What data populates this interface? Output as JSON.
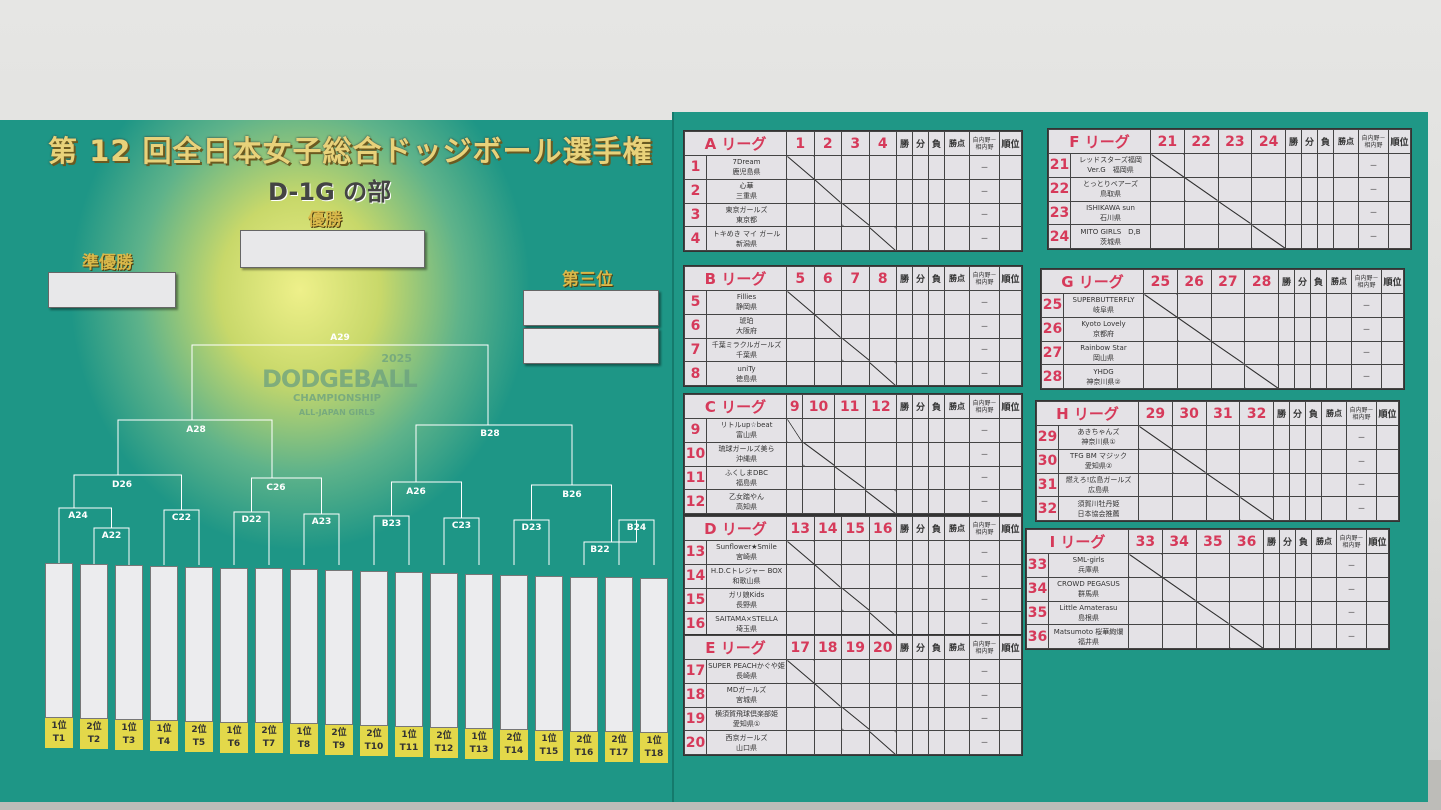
{
  "title": "第 12 回全日本女子総合ドッジボール選手権",
  "division": "D-1G の部",
  "winner_label": "優勝",
  "runner_up_label": "準優勝",
  "third_label": "第三位",
  "logo": {
    "line1": "DODGEBALL",
    "line2": "CHAMPIONSHIP",
    "line3": "ALL-JAPAN GIRLS",
    "year": "2025"
  },
  "bracket_labels": {
    "final": "A29",
    "semi_left": "A28",
    "semi_right": "B28",
    "q1": "D26",
    "q2": "C26",
    "q3": "A26",
    "q4": "B26",
    "r1": "A24",
    "r2": "A22",
    "r3": "C22",
    "r4": "D22",
    "r5": "A23",
    "r6": "B23",
    "r7": "C23",
    "r8": "D23",
    "r9": "B22",
    "r10": "B24"
  },
  "slots": [
    {
      "rank": "1位",
      "team": "T1"
    },
    {
      "rank": "2位",
      "team": "T2"
    },
    {
      "rank": "1位",
      "team": "T3"
    },
    {
      "rank": "1位",
      "team": "T4"
    },
    {
      "rank": "2位",
      "team": "T5"
    },
    {
      "rank": "1位",
      "team": "T6"
    },
    {
      "rank": "2位",
      "team": "T7"
    },
    {
      "rank": "1位",
      "team": "T8"
    },
    {
      "rank": "2位",
      "team": "T9"
    },
    {
      "rank": "2位",
      "team": "T10"
    },
    {
      "rank": "1位",
      "team": "T11"
    },
    {
      "rank": "2位",
      "team": "T12"
    },
    {
      "rank": "1位",
      "team": "T13"
    },
    {
      "rank": "2位",
      "team": "T14"
    },
    {
      "rank": "1位",
      "team": "T15"
    },
    {
      "rank": "2位",
      "team": "T16"
    },
    {
      "rank": "2位",
      "team": "T17"
    },
    {
      "rank": "1位",
      "team": "T18"
    }
  ],
  "table_headers": {
    "win": "勝",
    "draw": "分",
    "loss": "負",
    "points": "勝点",
    "own": "自内野",
    "dash": "－",
    "opp": "相内野",
    "rank": "順位",
    "score_dash": "－"
  },
  "leagues": [
    {
      "name": "A リーグ",
      "teams": [
        {
          "no": "1",
          "name": "7Dream",
          "pref": "鹿児島県"
        },
        {
          "no": "2",
          "name": "心華",
          "pref": "三重県"
        },
        {
          "no": "3",
          "name": "東京ガールズ",
          "pref": "東京都"
        },
        {
          "no": "4",
          "name": "トキめき マイ ガール",
          "pref": "新潟県"
        }
      ]
    },
    {
      "name": "B リーグ",
      "teams": [
        {
          "no": "5",
          "name": "Fillies",
          "pref": "静岡県"
        },
        {
          "no": "6",
          "name": "琥珀",
          "pref": "大阪府"
        },
        {
          "no": "7",
          "name": "千葉ミラクルガールズ",
          "pref": "千葉県"
        },
        {
          "no": "8",
          "name": "uniTy",
          "pref": "徳島県"
        }
      ]
    },
    {
      "name": "C リーグ",
      "teams": [
        {
          "no": "9",
          "name": "リトルup☆beat",
          "pref": "富山県"
        },
        {
          "no": "10",
          "name": "琉球ガールズ美ら",
          "pref": "沖縄県"
        },
        {
          "no": "11",
          "name": "ふくしまDBC",
          "pref": "福島県"
        },
        {
          "no": "12",
          "name": "乙女踏やん",
          "pref": "高知県"
        }
      ]
    },
    {
      "name": "D リーグ",
      "teams": [
        {
          "no": "13",
          "name": "Sunflower★Smile",
          "pref": "宮崎県"
        },
        {
          "no": "14",
          "name": "H.D.Cトレジャー BOX",
          "pref": "和歌山県"
        },
        {
          "no": "15",
          "name": "ガリ娘Kids",
          "pref": "長野県"
        },
        {
          "no": "16",
          "name": "SAITAMA×STELLA",
          "pref": "埼玉県"
        }
      ]
    },
    {
      "name": "E リーグ",
      "teams": [
        {
          "no": "17",
          "name": "SUPER PEACHかぐや姫",
          "pref": "長崎県"
        },
        {
          "no": "18",
          "name": "MDガールズ",
          "pref": "宮城県"
        },
        {
          "no": "19",
          "name": "横須賀飛球倶楽部姫",
          "pref": "愛知県①"
        },
        {
          "no": "20",
          "name": "西京ガールズ",
          "pref": "山口県"
        }
      ]
    },
    {
      "name": "F リーグ",
      "teams": [
        {
          "no": "21",
          "name": "レッドスターズ福岡",
          "pref": "Ver.G　福岡県"
        },
        {
          "no": "22",
          "name": "とっとりベアーズ",
          "pref": "鳥取県"
        },
        {
          "no": "23",
          "name": "ISHIKAWA sun",
          "pref": "石川県"
        },
        {
          "no": "24",
          "name": "MITO GIRLS　D,B",
          "pref": "茨城県"
        }
      ]
    },
    {
      "name": "G リーグ",
      "teams": [
        {
          "no": "25",
          "name": "SUPERBUTTERFLY",
          "pref": "岐阜県"
        },
        {
          "no": "26",
          "name": "Kyoto Lovely",
          "pref": "京都府"
        },
        {
          "no": "27",
          "name": "Rainbow Star",
          "pref": "岡山県"
        },
        {
          "no": "28",
          "name": "YHDG",
          "pref": "神奈川県②"
        }
      ]
    },
    {
      "name": "H リーグ",
      "teams": [
        {
          "no": "29",
          "name": "あきちゃんズ",
          "pref": "神奈川県①"
        },
        {
          "no": "30",
          "name": "TFG BM マジック",
          "pref": "愛知県②"
        },
        {
          "no": "31",
          "name": "燃えろ!広島ガールズ",
          "pref": "広島県"
        },
        {
          "no": "32",
          "name": "須賀川牡丹姫",
          "pref": "日本協会推薦"
        }
      ]
    },
    {
      "name": "I リーグ",
      "teams": [
        {
          "no": "33",
          "name": "SML-girls",
          "pref": "兵庫県"
        },
        {
          "no": "34",
          "name": "CROWD PEGASUS",
          "pref": "群馬県"
        },
        {
          "no": "35",
          "name": "Little Amaterasu",
          "pref": "島根県"
        },
        {
          "no": "36",
          "name": "Matsumoto 桜華絢爛",
          "pref": "福井県"
        }
      ]
    }
  ],
  "colors": {
    "board": "#1e9686",
    "accent": "#d63a5a",
    "slot_label": "#e3d84a",
    "title_gold": "#e8d27a"
  }
}
